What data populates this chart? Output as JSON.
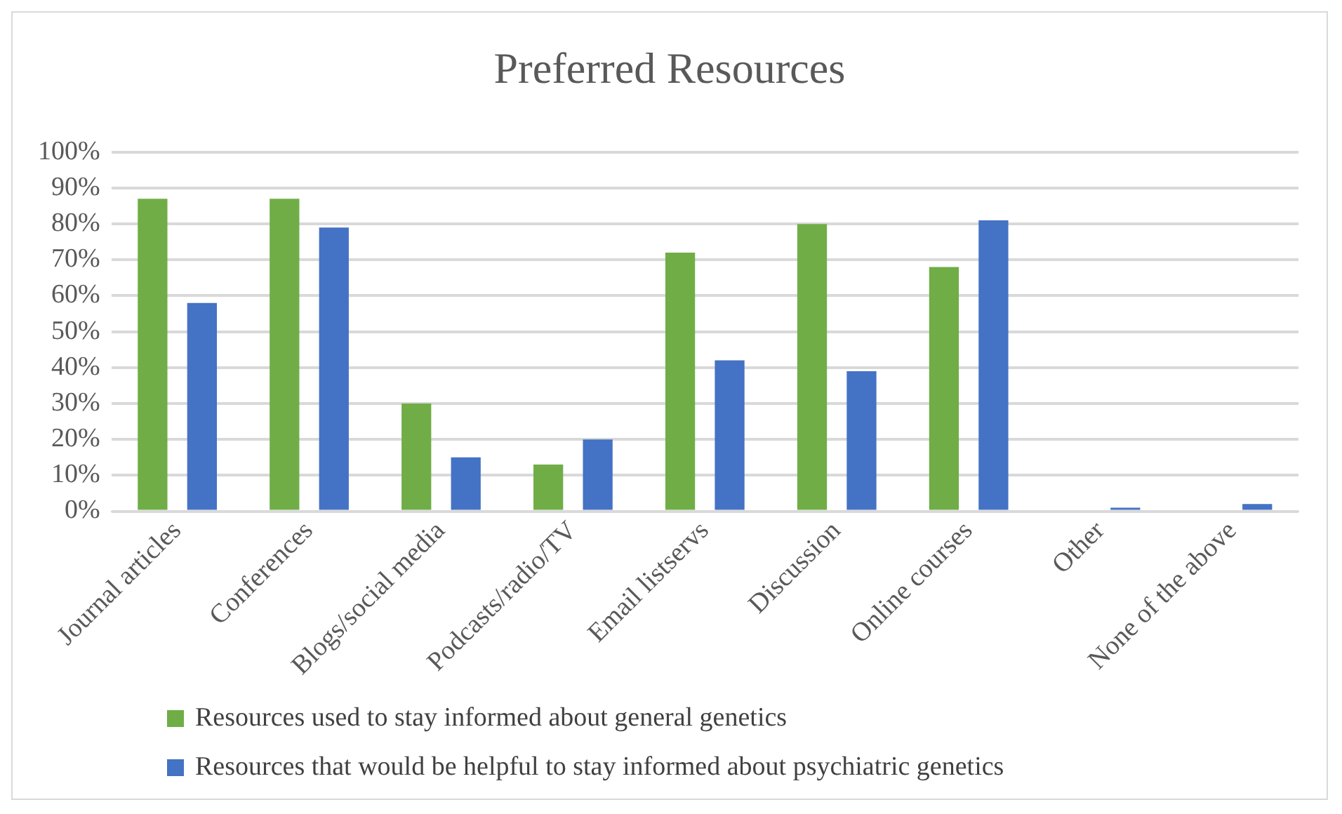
{
  "chart_data": {
    "type": "bar",
    "title": "Preferred Resources",
    "categories": [
      "Journal articles",
      "Conferences",
      "Blogs/social media",
      "Podcasts/radio/TV",
      "Email listservs",
      "Discussion",
      "Online courses",
      "Other",
      "None of the above"
    ],
    "series": [
      {
        "name": "Resources used to stay informed about general genetics",
        "color": "#70ad47",
        "values": [
          87,
          87,
          30,
          13,
          72,
          80,
          68,
          0,
          0
        ]
      },
      {
        "name": "Resources that would be helpful to stay informed about psychiatric genetics",
        "color": "#4472c4",
        "values": [
          58,
          79,
          15,
          20,
          42,
          39,
          81,
          1,
          2
        ]
      }
    ],
    "ylim": [
      0,
      100
    ],
    "yticks": [
      {
        "value": 0,
        "label": "0%"
      },
      {
        "value": 10,
        "label": "10%"
      },
      {
        "value": 20,
        "label": "20%"
      },
      {
        "value": 30,
        "label": "30%"
      },
      {
        "value": 40,
        "label": "40%"
      },
      {
        "value": 50,
        "label": "50%"
      },
      {
        "value": 60,
        "label": "60%"
      },
      {
        "value": 70,
        "label": "70%"
      },
      {
        "value": 80,
        "label": "80%"
      },
      {
        "value": 90,
        "label": "90%"
      },
      {
        "value": 100,
        "label": "100%"
      }
    ],
    "grid": "y",
    "legend": "bottom"
  }
}
